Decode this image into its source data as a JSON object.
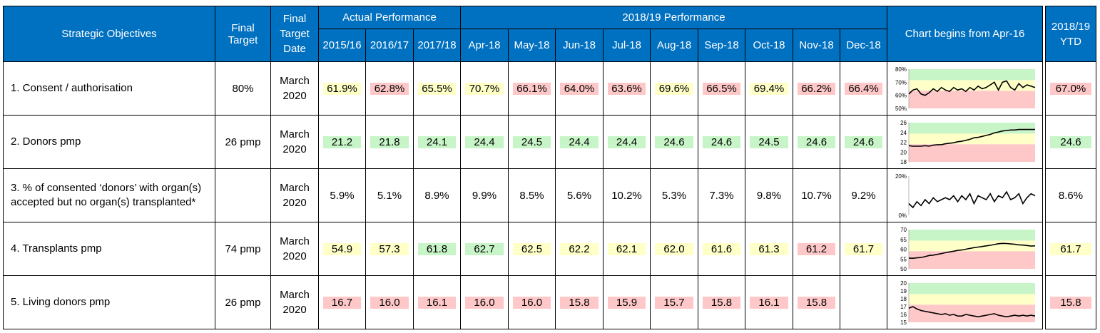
{
  "header": {
    "objectives": "Strategic Objectives",
    "final_target": "Final Target",
    "final_target_date": "Final Target Date",
    "actual_performance": "Actual Performance",
    "performance_1819": "2018/19 Performance",
    "chart_caption": "Chart begins from Apr-16",
    "ytd": "2018/19 YTD",
    "periods": [
      "2015/16",
      "2016/17",
      "2017/18",
      "Apr-18",
      "May-18",
      "Jun-18",
      "Jul-18",
      "Aug-18",
      "Sep-18",
      "Oct-18",
      "Nov-18",
      "Dec-18"
    ]
  },
  "colors": {
    "header_blue": "#0070c0",
    "yellow": "#ffffc8",
    "green": "#c8f5c8",
    "red": "#ffc8c8",
    "grey": "#d3d3d3",
    "line": "#000000"
  },
  "rows": [
    {
      "objective": "1. Consent / authorisation",
      "target": "80%",
      "date": "March 2020",
      "values": [
        "61.9%",
        "62.8%",
        "65.5%",
        "70.7%",
        "66.1%",
        "64.0%",
        "63.6%",
        "69.6%",
        "66.5%",
        "69.4%",
        "66.2%",
        "66.4%"
      ],
      "status": [
        "yellow",
        "red",
        "yellow",
        "yellow",
        "red",
        "red",
        "red",
        "yellow",
        "red",
        "yellow",
        "red",
        "red"
      ],
      "ytd": "67.0%",
      "ytd_status": "red"
    },
    {
      "objective": "2. Donors pmp",
      "target": "26 pmp",
      "date": "March 2020",
      "values": [
        "21.2",
        "21.8",
        "24.1",
        "24.4",
        "24.5",
        "24.4",
        "24.4",
        "24.6",
        "24.6",
        "24.5",
        "24.6",
        "24.6"
      ],
      "status": [
        "green",
        "green",
        "green",
        "green",
        "green",
        "green",
        "green",
        "green",
        "green",
        "green",
        "green",
        "green"
      ],
      "ytd": "24.6",
      "ytd_status": "green"
    },
    {
      "objective": "3. % of consented ‘donors’ with organ(s) accepted but no organ(s) transplanted*",
      "target": "",
      "date": "March 2020",
      "values": [
        "5.9%",
        "5.1%",
        "8.9%",
        "9.9%",
        "8.5%",
        "5.6%",
        "10.2%",
        "5.3%",
        "7.3%",
        "9.8%",
        "10.7%",
        "9.2%"
      ],
      "status": [
        "white",
        "white",
        "white",
        "white",
        "white",
        "white",
        "white",
        "white",
        "white",
        "white",
        "white",
        "white"
      ],
      "ytd": "8.6%",
      "ytd_status": "white"
    },
    {
      "objective": "4. Transplants pmp",
      "target": "74 pmp",
      "date": "March 2020",
      "values": [
        "54.9",
        "57.3",
        "61.8",
        "62.7",
        "62.5",
        "62.2",
        "62.1",
        "62.0",
        "61.6",
        "61.3",
        "61.2",
        "61.7"
      ],
      "status": [
        "yellow",
        "yellow",
        "green",
        "green",
        "yellow",
        "yellow",
        "yellow",
        "yellow",
        "yellow",
        "yellow",
        "red",
        "yellow"
      ],
      "ytd": "61.7",
      "ytd_status": "yellow"
    },
    {
      "objective": "5. Living donors pmp",
      "target": "26 pmp",
      "date": "March 2020",
      "values": [
        "16.7",
        "16.0",
        "16.1",
        "16.0",
        "16.0",
        "15.8",
        "15.9",
        "15.7",
        "15.8",
        "16.1",
        "15.8",
        ""
      ],
      "status": [
        "red",
        "red",
        "red",
        "red",
        "red",
        "red",
        "red",
        "red",
        "red",
        "red",
        "red",
        "grey"
      ],
      "ytd": "15.8",
      "ytd_status": "red"
    }
  ],
  "chart_data": [
    {
      "type": "line",
      "name": "Consent / authorisation",
      "ylim": [
        50,
        80
      ],
      "ticks": [
        "80%",
        "70%",
        "60%",
        "50%"
      ],
      "bands": "rgy",
      "y": [
        61,
        64,
        65,
        61,
        60,
        62,
        65,
        63,
        66,
        64,
        63,
        66,
        64,
        65,
        63,
        66,
        64,
        67,
        65,
        66,
        68,
        70,
        64,
        70,
        71,
        66,
        64,
        69,
        66,
        68,
        67,
        66
      ]
    },
    {
      "type": "line",
      "name": "Donors pmp",
      "ylim": [
        18,
        26
      ],
      "ticks": [
        "26",
        "24",
        "22",
        "20",
        "18"
      ],
      "bands": "rgy",
      "y": [
        21.3,
        21.2,
        21.2,
        21.2,
        21.3,
        21.2,
        21.4,
        21.5,
        21.5,
        21.7,
        21.8,
        21.9,
        22.1,
        22.2,
        22.4,
        22.6,
        22.9,
        23.0,
        23.2,
        23.4,
        23.6,
        23.9,
        24.1,
        24.3,
        24.4,
        24.5,
        24.5,
        24.6,
        24.6,
        24.6,
        24.6,
        24.6
      ]
    },
    {
      "type": "line",
      "name": "Consented donors with organs accepted but not transplanted",
      "ylim": [
        0,
        20
      ],
      "ticks": [
        "20%",
        "0%"
      ],
      "bands": "none",
      "y": [
        6,
        4,
        7,
        5,
        8,
        6,
        9,
        7,
        8,
        9,
        8,
        10,
        7,
        10,
        8,
        11,
        6,
        10,
        9,
        8,
        11,
        7,
        10,
        9,
        12,
        8,
        9,
        11,
        6,
        9,
        11,
        10
      ]
    },
    {
      "type": "line",
      "name": "Transplants pmp",
      "ylim": [
        50,
        70
      ],
      "ticks": [
        "70",
        "65",
        "60",
        "55",
        "50"
      ],
      "bands": "rgy",
      "y": [
        55.5,
        55.4,
        55.6,
        55.8,
        56.2,
        56.8,
        57.0,
        57.4,
        57.8,
        58.2,
        58.6,
        59.0,
        59.4,
        59.6,
        60.0,
        60.4,
        60.8,
        61.1,
        61.4,
        61.7,
        62.0,
        62.4,
        62.8,
        63.0,
        62.9,
        62.7,
        62.5,
        62.2,
        62.1,
        61.9,
        61.6,
        61.7
      ]
    },
    {
      "type": "line",
      "name": "Living donors pmp",
      "ylim": [
        15,
        20
      ],
      "ticks": [
        "20",
        "19",
        "18",
        "17",
        "16",
        "15"
      ],
      "bands": "rgy",
      "y": [
        16.8,
        17.0,
        16.7,
        16.5,
        16.4,
        16.3,
        16.2,
        16.1,
        16.0,
        16.1,
        15.9,
        16.0,
        15.8,
        15.8,
        16.0,
        15.9,
        15.8,
        15.7,
        15.8,
        15.9,
        16.0,
        16.1,
        15.9,
        15.8,
        15.7,
        15.8,
        15.9,
        15.8,
        15.9,
        15.8,
        15.9,
        15.8
      ]
    }
  ]
}
